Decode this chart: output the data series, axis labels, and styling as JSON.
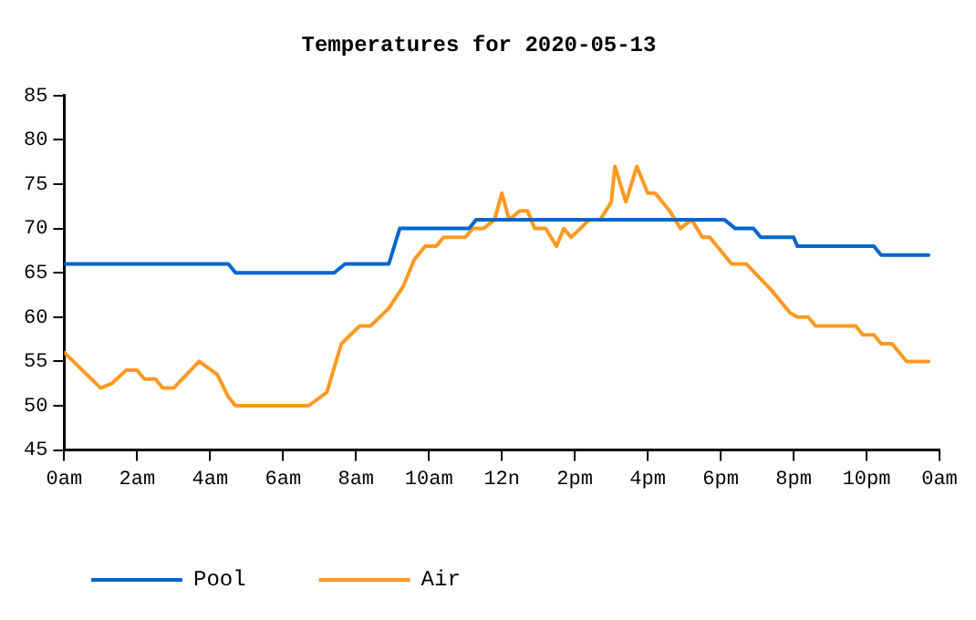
{
  "chart_data": {
    "type": "line",
    "title": "Temperatures for 2020-05-13",
    "xlim": [
      "2020-05-13T00:00",
      "2020-05-14T00:00"
    ],
    "xticks": [
      {
        "value": "2020-05-13T00:00",
        "label": "0am"
      },
      {
        "value": "2020-05-13T02:00",
        "label": "2am"
      },
      {
        "value": "2020-05-13T04:00",
        "label": "4am"
      },
      {
        "value": "2020-05-13T06:00",
        "label": "6am"
      },
      {
        "value": "2020-05-13T08:00",
        "label": "8am"
      },
      {
        "value": "2020-05-13T10:00",
        "label": "10am"
      },
      {
        "value": "2020-05-13T12:00",
        "label": "12n"
      },
      {
        "value": "2020-05-13T14:00",
        "label": "2pm"
      },
      {
        "value": "2020-05-13T16:00",
        "label": "4pm"
      },
      {
        "value": "2020-05-13T18:00",
        "label": "6pm"
      },
      {
        "value": "2020-05-13T20:00",
        "label": "8pm"
      },
      {
        "value": "2020-05-13T22:00",
        "label": "10pm"
      },
      {
        "value": "2020-05-14T00:00",
        "label": "0am"
      }
    ],
    "ylim": [
      45,
      85
    ],
    "yticks": [
      45,
      50,
      55,
      60,
      65,
      70,
      75,
      80,
      85
    ],
    "grid": false,
    "legend": "bottom left",
    "marker": "none",
    "line_style": "solid",
    "series": [
      {
        "name": "Pool",
        "color": "#0066cc",
        "x": [
          "2020-05-13T00:00",
          "2020-05-13T04:30",
          "2020-05-13T04:42",
          "2020-05-13T07:24",
          "2020-05-13T07:42",
          "2020-05-13T08:54",
          "2020-05-13T09:12",
          "2020-05-13T11:06",
          "2020-05-13T11:18",
          "2020-05-13T18:06",
          "2020-05-13T18:24",
          "2020-05-13T18:54",
          "2020-05-13T19:06",
          "2020-05-13T20:00",
          "2020-05-13T20:06",
          "2020-05-13T22:12",
          "2020-05-13T22:24",
          "2020-05-13T23:42"
        ],
        "values": [
          66,
          66,
          65,
          65,
          66,
          66,
          70,
          70,
          71,
          71,
          70,
          70,
          69,
          69,
          68,
          68,
          67,
          67
        ]
      },
      {
        "name": "Air",
        "color": "#ff9922",
        "x": [
          "2020-05-13T00:00",
          "2020-05-13T01:00",
          "2020-05-13T01:18",
          "2020-05-13T01:42",
          "2020-05-13T02:00",
          "2020-05-13T02:12",
          "2020-05-13T02:30",
          "2020-05-13T02:42",
          "2020-05-13T03:00",
          "2020-05-13T03:42",
          "2020-05-13T04:12",
          "2020-05-13T04:30",
          "2020-05-13T04:42",
          "2020-05-13T06:42",
          "2020-05-13T07:12",
          "2020-05-13T07:36",
          "2020-05-13T08:06",
          "2020-05-13T08:24",
          "2020-05-13T08:54",
          "2020-05-13T09:18",
          "2020-05-13T09:36",
          "2020-05-13T09:54",
          "2020-05-13T10:12",
          "2020-05-13T10:24",
          "2020-05-13T11:00",
          "2020-05-13T11:12",
          "2020-05-13T11:30",
          "2020-05-13T11:48",
          "2020-05-13T12:00",
          "2020-05-13T12:12",
          "2020-05-13T12:30",
          "2020-05-13T12:42",
          "2020-05-13T12:54",
          "2020-05-13T13:12",
          "2020-05-13T13:30",
          "2020-05-13T13:42",
          "2020-05-13T13:54",
          "2020-05-13T14:24",
          "2020-05-13T14:42",
          "2020-05-13T15:00",
          "2020-05-13T15:06",
          "2020-05-13T15:24",
          "2020-05-13T15:42",
          "2020-05-13T16:00",
          "2020-05-13T16:12",
          "2020-05-13T16:36",
          "2020-05-13T16:54",
          "2020-05-13T17:12",
          "2020-05-13T17:30",
          "2020-05-13T17:42",
          "2020-05-13T18:18",
          "2020-05-13T18:42",
          "2020-05-13T19:24",
          "2020-05-13T19:54",
          "2020-05-13T20:06",
          "2020-05-13T20:24",
          "2020-05-13T20:36",
          "2020-05-13T21:42",
          "2020-05-13T21:54",
          "2020-05-13T22:12",
          "2020-05-13T22:24",
          "2020-05-13T22:42",
          "2020-05-13T23:06",
          "2020-05-13T23:42"
        ],
        "values": [
          56,
          52,
          52.5,
          54,
          54,
          53,
          53,
          52,
          52,
          55,
          53.5,
          51,
          50,
          50,
          51.5,
          57,
          59,
          59,
          61,
          63.5,
          66.5,
          68,
          68,
          69,
          69,
          70,
          70,
          71,
          74,
          71,
          72,
          72,
          70,
          70,
          68,
          70,
          69,
          71,
          71,
          73,
          77,
          73,
          77,
          74,
          74,
          72,
          70,
          71,
          69,
          69,
          66,
          66,
          63,
          60.5,
          60,
          60,
          59,
          59,
          58,
          58,
          57,
          57,
          55,
          55
        ]
      }
    ]
  }
}
